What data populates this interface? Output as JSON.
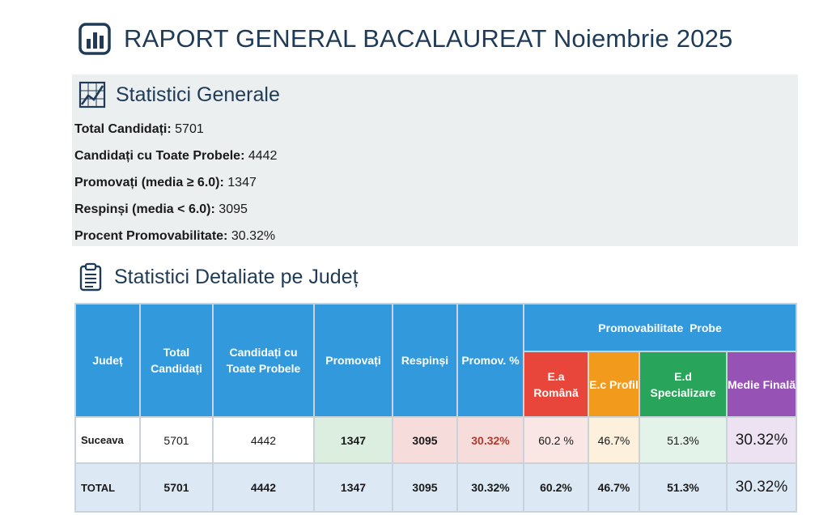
{
  "title": "RAPORT GENERAL BACALAUREAT Noiembrie 2025",
  "general": {
    "heading": "Statistici Generale",
    "stats": [
      {
        "label": "Total Candidați:",
        "value": "5701"
      },
      {
        "label": "Candidați cu Toate Probele:",
        "value": "4442"
      },
      {
        "label": "Promovați (media ≥ 6.0):",
        "value": "1347"
      },
      {
        "label": "Respinși (media < 6.0):",
        "value": "3095"
      },
      {
        "label": "Procent Promovabilitate:",
        "value": "30.32%"
      }
    ]
  },
  "detailed": {
    "heading": "Statistici Detaliate pe Județ",
    "headers": {
      "judet": "Județ",
      "total": "Total Candidați",
      "toate": "Candidați cu Toate Probele",
      "promovati": "Promovați",
      "respinsi": "Respinși",
      "promov_pct": "Promov. %",
      "group": "Promovabilitate  Probe",
      "ea": "E.a Română",
      "ec": "E.c Profil",
      "ed": "E.d Specializare",
      "mf": "Medie Finală"
    },
    "rows": [
      {
        "judet": "Suceava",
        "total": "5701",
        "toate": "4442",
        "promovati": "1347",
        "respinsi": "3095",
        "promov_pct": "30.32%",
        "ea": "60.2 %",
        "ec": "46.7%",
        "ed": "51.3%",
        "mf": "30.32%"
      }
    ],
    "total_row": {
      "judet": "TOTAL",
      "total": "5701",
      "toate": "4442",
      "promovati": "1347",
      "respinsi": "3095",
      "promov_pct": "30.32%",
      "ea": "60.2%",
      "ec": "46.7%",
      "ed": "51.3%",
      "mf": "30.32%"
    }
  },
  "colors": {
    "header_blue": "#3399dd",
    "ea_red": "#e8463a",
    "ec_orange": "#f19a1c",
    "ed_green": "#28a55a",
    "mf_purple": "#9653b5",
    "title_navy": "#1f3b57"
  },
  "icons": {
    "title": "bar-chart-icon",
    "general": "line-chart-icon",
    "detailed": "clipboard-icon"
  }
}
